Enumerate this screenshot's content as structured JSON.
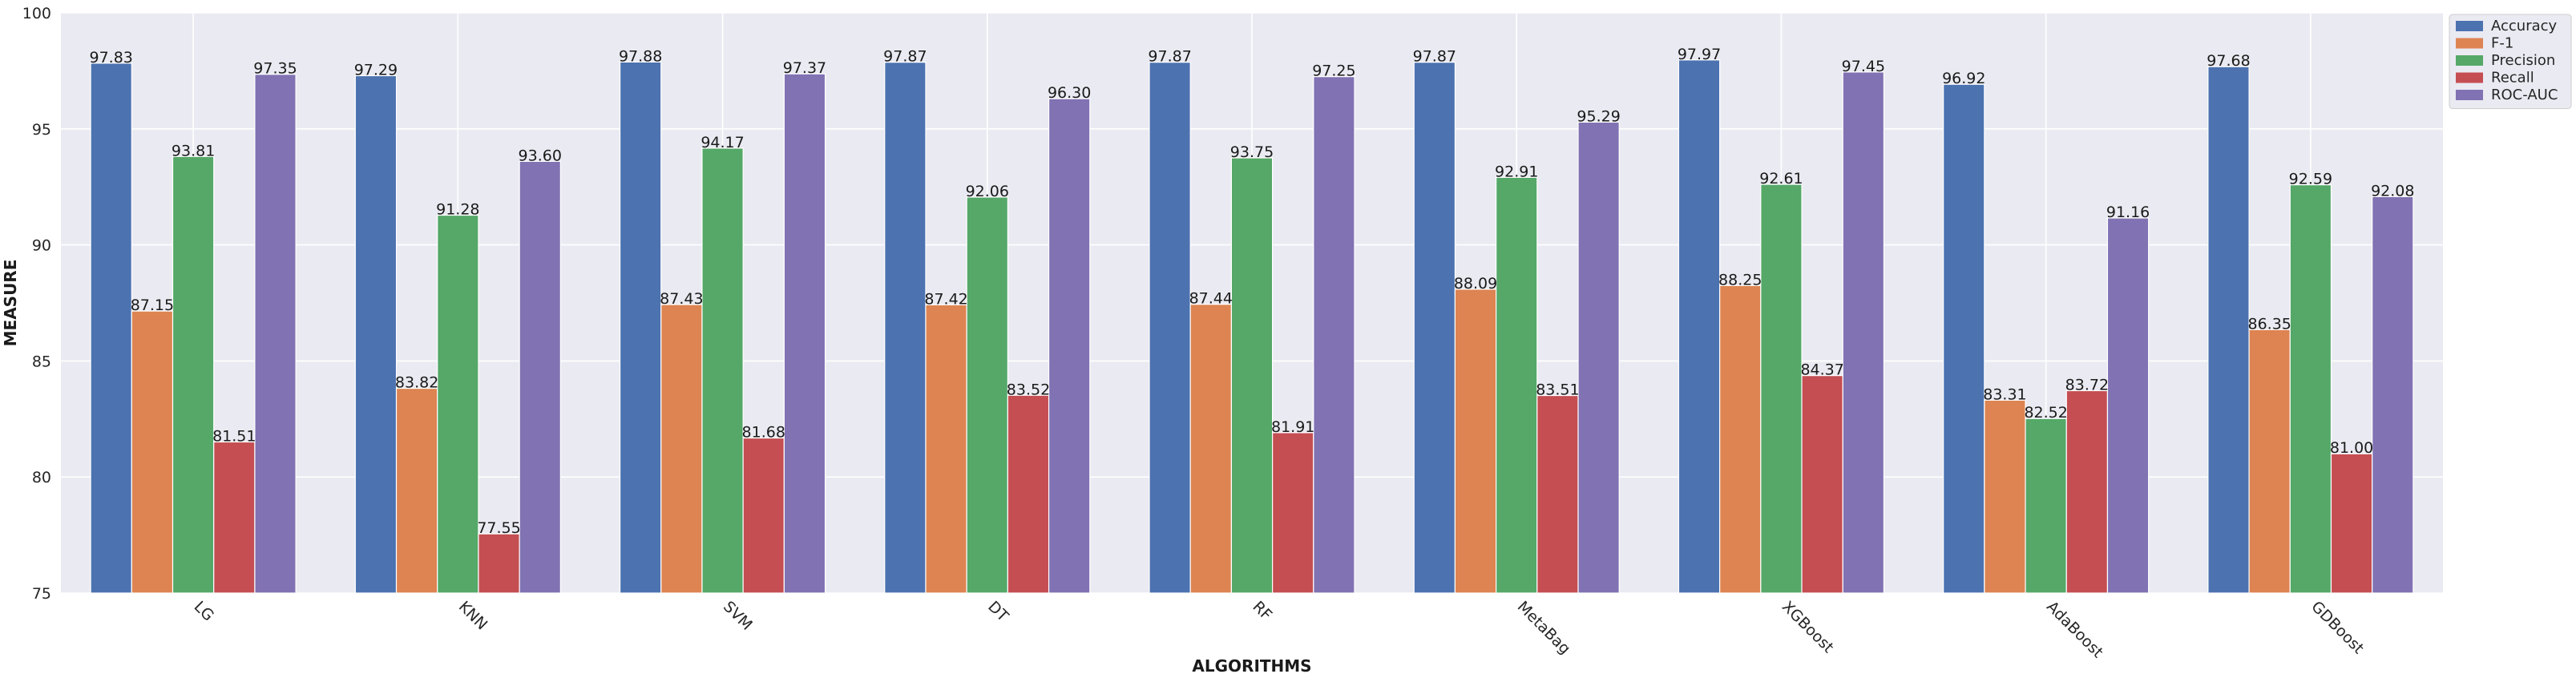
{
  "chart_data": {
    "type": "bar",
    "xlabel": "ALGORITHMS",
    "ylabel": "MEASURE",
    "ylim": [
      75,
      100
    ],
    "yticks": [
      75,
      80,
      85,
      90,
      95,
      100
    ],
    "grid": true,
    "legend_position": "top-right",
    "categories": [
      "LG",
      "KNN",
      "SVM",
      "DT",
      "RF",
      "MetaBag",
      "XGBoost",
      "AdaBoost",
      "GDBoost"
    ],
    "series": [
      {
        "name": "Accuracy",
        "color": "#4C72B0",
        "values": [
          97.83,
          97.29,
          97.88,
          97.87,
          97.87,
          97.87,
          97.97,
          96.92,
          97.68
        ]
      },
      {
        "name": "F-1",
        "color": "#DD8452",
        "values": [
          87.15,
          83.82,
          87.43,
          87.42,
          87.44,
          88.09,
          88.25,
          83.31,
          86.35
        ]
      },
      {
        "name": "Precision",
        "color": "#55A868",
        "values": [
          93.81,
          91.28,
          94.17,
          92.06,
          93.75,
          92.91,
          92.61,
          82.52,
          92.59
        ]
      },
      {
        "name": "Recall",
        "color": "#C44E52",
        "values": [
          81.51,
          77.55,
          81.68,
          83.52,
          81.91,
          83.51,
          84.37,
          83.72,
          81.0
        ]
      },
      {
        "name": "ROC-AUC",
        "color": "#8172B3",
        "values": [
          97.35,
          93.6,
          97.37,
          96.3,
          97.25,
          95.29,
          97.45,
          91.16,
          92.08
        ]
      }
    ],
    "value_labels": [
      [
        "97.83",
        "97.29",
        "97.88",
        "97.87",
        "97.87",
        "97.87",
        "97.97",
        "96.92",
        "97.68"
      ],
      [
        "87.15",
        "83.82",
        "87.43",
        "87.42",
        "87.44",
        "88.09",
        "88.25",
        "83.31",
        "86.35"
      ],
      [
        "93.81",
        "91.28",
        "94.17",
        "92.06",
        "93.75",
        "92.91",
        "92.61",
        "82.52",
        "92.59"
      ],
      [
        "81.51",
        "77.55",
        "81.68",
        "83.52",
        "81.91",
        "83.51",
        "84.37",
        "83.72",
        "81.00"
      ],
      [
        "97.35",
        "93.60",
        "97.37",
        "96.30",
        "97.25",
        "95.29",
        "97.45",
        "91.16",
        "92.08"
      ]
    ]
  }
}
